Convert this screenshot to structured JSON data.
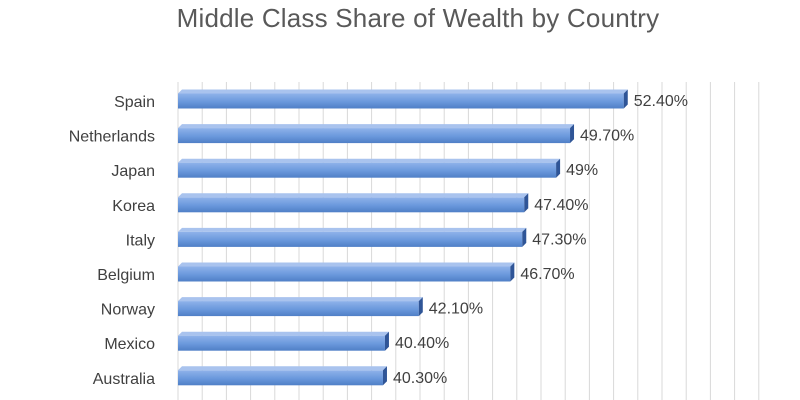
{
  "chart_data": {
    "type": "bar",
    "orientation": "horizontal",
    "title": "Middle Class Share of Wealth by Country",
    "categories": [
      "Spain",
      "Netherlands",
      "Japan",
      "Korea",
      "Italy",
      "Belgium",
      "Norway",
      "Mexico",
      "Australia"
    ],
    "values": [
      52.4,
      49.7,
      49,
      47.4,
      47.3,
      46.7,
      42.1,
      40.4,
      40.3
    ],
    "value_labels": [
      "52.40%",
      "49.70%",
      "49%",
      "47.40%",
      "47.30%",
      "46.70%",
      "42.10%",
      "40.40%",
      "40.30%"
    ],
    "xlim": [
      30,
      60
    ],
    "xlabel": "",
    "ylabel": "",
    "grid": true,
    "bar_color": "#6a98dc"
  }
}
